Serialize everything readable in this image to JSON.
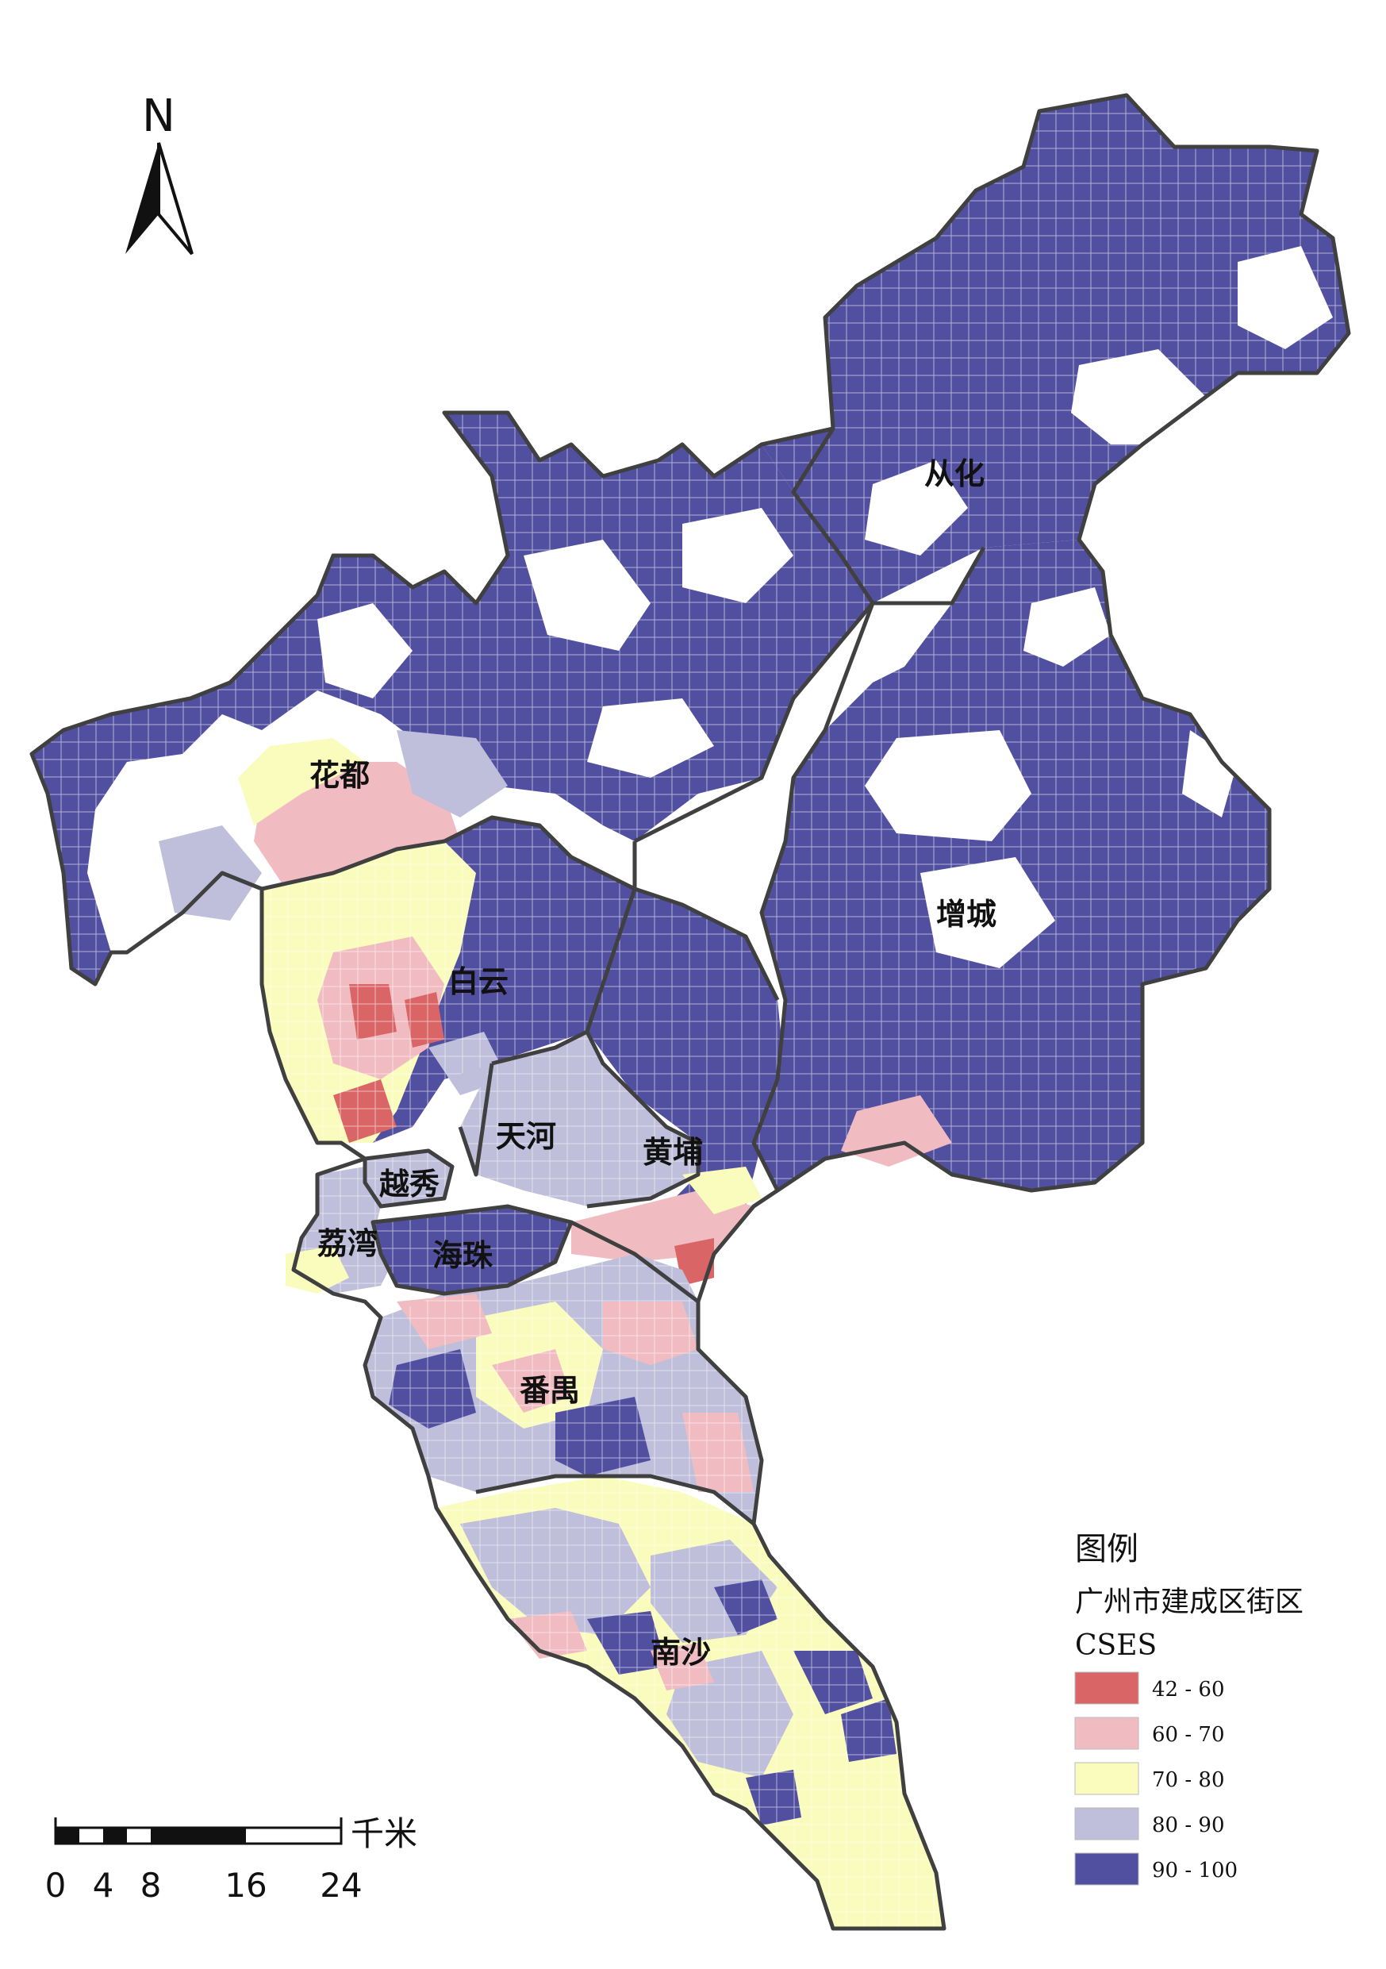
{
  "north_arrow": {
    "label": "N"
  },
  "districts": [
    {
      "id": "conghua",
      "label": "从化"
    },
    {
      "id": "huadu",
      "label": "花都"
    },
    {
      "id": "zengcheng",
      "label": "增城"
    },
    {
      "id": "baiyun",
      "label": "白云"
    },
    {
      "id": "tianhe",
      "label": "天河"
    },
    {
      "id": "huangpu",
      "label": "黄埔"
    },
    {
      "id": "yuexiu",
      "label": "越秀"
    },
    {
      "id": "liwan",
      "label": "荔湾"
    },
    {
      "id": "haizhu",
      "label": "海珠"
    },
    {
      "id": "panyu",
      "label": "番禺"
    },
    {
      "id": "nansha",
      "label": "南沙"
    }
  ],
  "legend": {
    "title": "图例",
    "layer_name": "广州市建成区街区",
    "field_name": "CSES",
    "classes": [
      {
        "range": "42 - 60",
        "color": "#d96566"
      },
      {
        "range": "60 - 70",
        "color": "#f0bcc1"
      },
      {
        "range": "70 - 80",
        "color": "#fafcbd"
      },
      {
        "range": "80 - 90",
        "color": "#bfbedb"
      },
      {
        "range": "90 - 100",
        "color": "#514fa0"
      }
    ]
  },
  "scale_bar": {
    "unit": "千米",
    "ticks": [
      "0",
      "4",
      "8",
      "16",
      "24"
    ]
  },
  "colors": {
    "boundary": "#404040",
    "background": "#ffffff"
  }
}
